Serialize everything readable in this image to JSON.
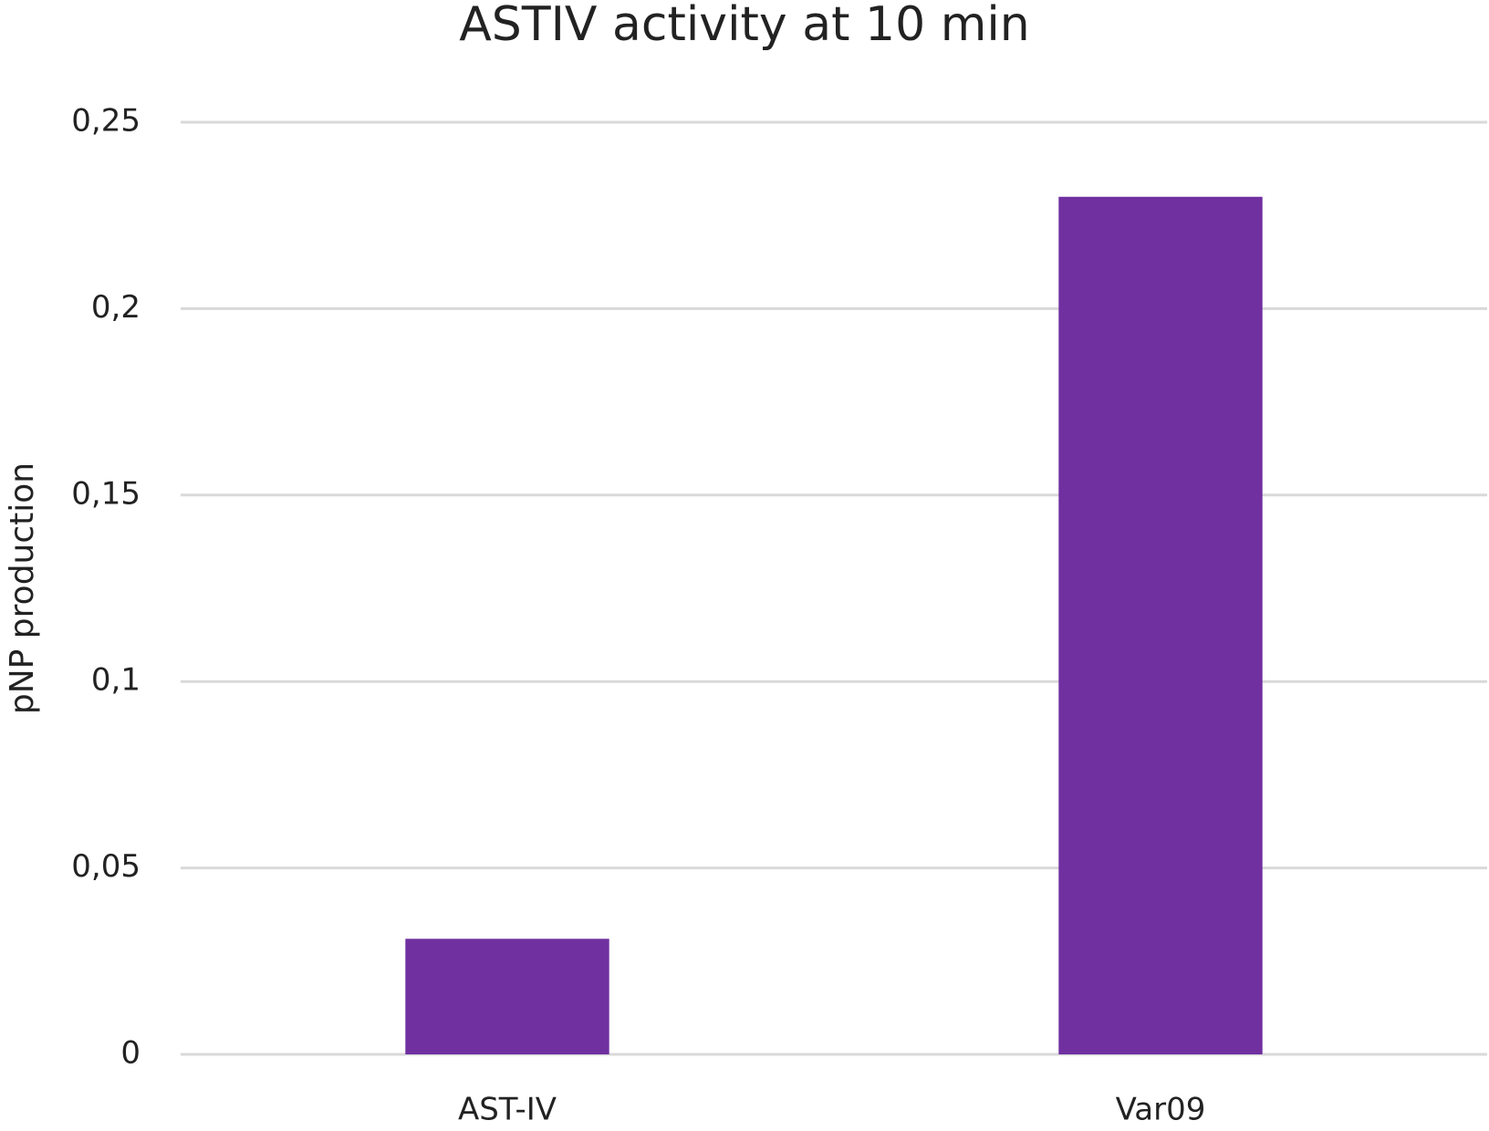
{
  "chart_data": {
    "type": "bar",
    "title": "ASTIV activity at 10 min",
    "y_label": "pNP production",
    "categories": [
      "AST-IV",
      "Var09"
    ],
    "values": [
      0.031,
      0.23
    ],
    "color": "#7030a0",
    "ylim": [
      0,
      0.25
    ],
    "yticks": [
      0,
      {
        "value": 0.05,
        "label": "0,05"
      },
      {
        "value": 0.1,
        "label": "0,1"
      },
      {
        "value": 0.15,
        "label": "0,15"
      },
      {
        "value": 0.2,
        "label": "0,2"
      },
      {
        "value": 0.25,
        "label": "0,25"
      }
    ],
    "grid": true
  }
}
